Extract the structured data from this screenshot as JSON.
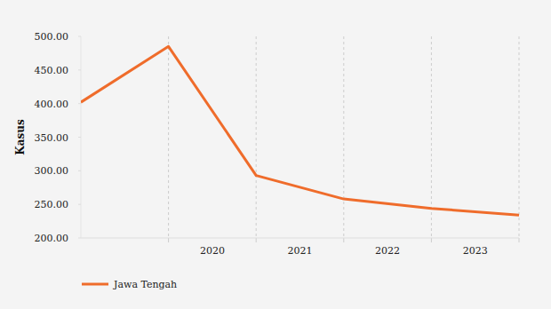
{
  "chart_data": {
    "type": "line",
    "y_label": "Kasus",
    "categories": [
      null,
      "2020",
      "2021",
      "2022",
      "2023",
      null
    ],
    "series": [
      {
        "name": "Jawa Tengah",
        "color": "#ef6c2b",
        "values": [
          402,
          485,
          293,
          258,
          244,
          234
        ]
      }
    ],
    "ylim": [
      200,
      500
    ],
    "yticks": [
      {
        "value": 200,
        "label": "200.00"
      },
      {
        "value": 250,
        "label": "250.00"
      },
      {
        "value": 300,
        "label": "300.00"
      },
      {
        "value": 350,
        "label": "350.00"
      },
      {
        "value": 400,
        "label": "400.00"
      },
      {
        "value": 450,
        "label": "450.00"
      },
      {
        "value": 500,
        "label": "500.00"
      }
    ],
    "grid": true,
    "legend": "bottom"
  }
}
